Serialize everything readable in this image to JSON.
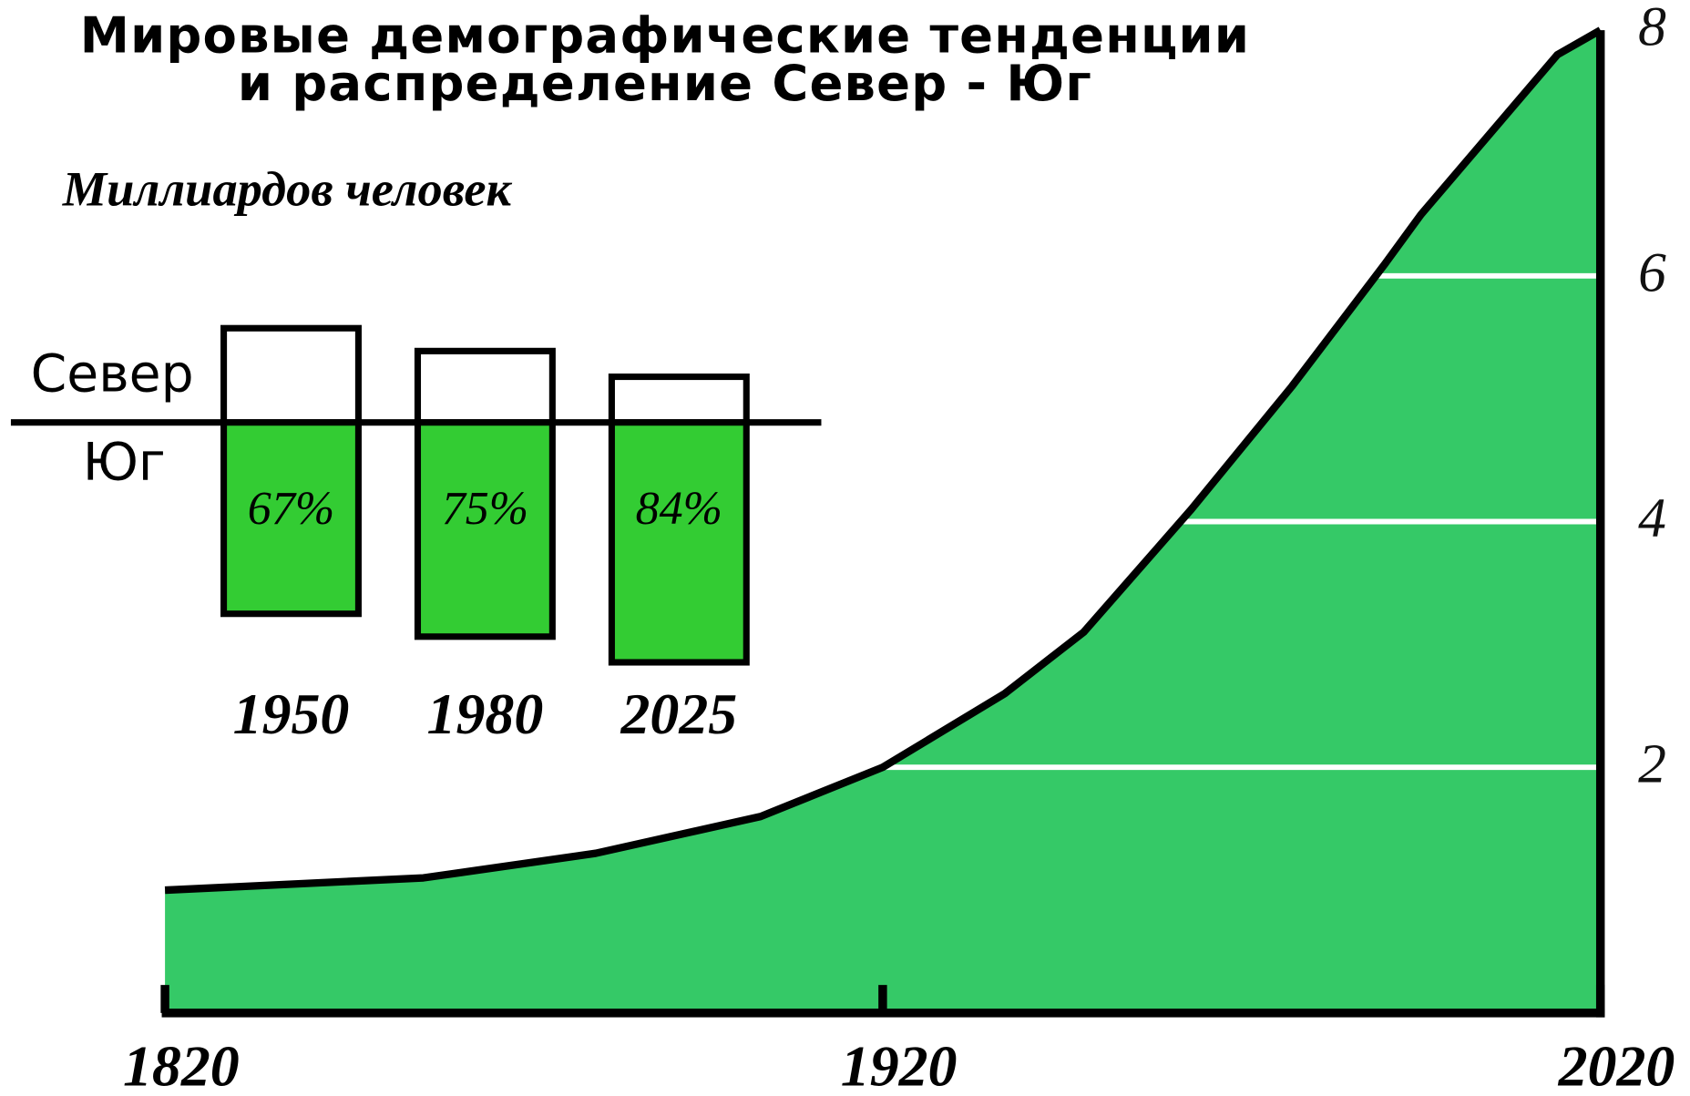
{
  "chart_data": [
    {
      "type": "area",
      "title": [
        "Мировые демографические тенденции",
        "и распределение Север - Юг"
      ],
      "y_label": "Миллиардов человек",
      "x": [
        1820,
        1856,
        1880,
        1903,
        1920,
        1937,
        1948,
        1963,
        1977,
        1990,
        1995,
        2014,
        2020
      ],
      "values": [
        1.0,
        1.1,
        1.3,
        1.6,
        2.0,
        2.6,
        3.1,
        4.1,
        5.1,
        6.1,
        6.5,
        7.8,
        8.0
      ],
      "color": "#35c967",
      "xlim": [
        1820,
        2020
      ],
      "xticks": [
        1820,
        1920,
        2020
      ],
      "ylim": [
        0,
        8
      ],
      "yticks": [
        2,
        4,
        6,
        8
      ],
      "grid": true
    },
    {
      "type": "split-bar",
      "above_label": "Север",
      "below_label": "Юг",
      "categories": [
        "1950",
        "1980",
        "2025"
      ],
      "values": [
        67,
        75,
        84
      ],
      "value_labels": [
        "67%",
        "75%",
        "84%"
      ],
      "color": "#33cc33"
    }
  ]
}
